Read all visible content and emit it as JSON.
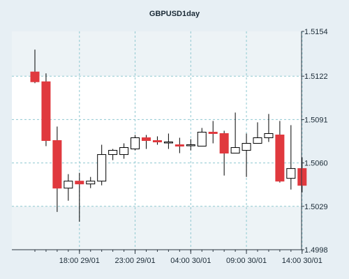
{
  "chart_data": {
    "type": "candlestick",
    "title": "GBPUSD1day",
    "xlabel": "",
    "ylabel": "",
    "ylim": [
      1.4998,
      1.5154
    ],
    "y_ticks": [
      "1.4998",
      "1.5029",
      "1.5060",
      "1.5091",
      "1.5122",
      "1.5154"
    ],
    "x_ticks": [
      {
        "index": 4,
        "label": "18:00 29/01"
      },
      {
        "index": 9,
        "label": "23:00 29/01"
      },
      {
        "index": 14,
        "label": "04:00 30/01"
      },
      {
        "index": 19,
        "label": "09:00 30/01"
      },
      {
        "index": 24,
        "label": "14:00 30/01"
      }
    ],
    "grid": true,
    "colors": {
      "up_fill": "#ffffff",
      "down_fill": "#e0393e",
      "candle_outline": "#000000",
      "grid": "#8fc8d0",
      "plot_background": "#ffffff",
      "band_background": "#edf3f6",
      "page_background": "#e7eff4"
    },
    "candles": [
      {
        "open": 1.5125,
        "high": 1.5141,
        "low": 1.5117,
        "close": 1.5118
      },
      {
        "open": 1.5118,
        "high": 1.5124,
        "low": 1.5072,
        "close": 1.5076
      },
      {
        "open": 1.5076,
        "high": 1.5086,
        "low": 1.5025,
        "close": 1.5042
      },
      {
        "open": 1.5042,
        "high": 1.5052,
        "low": 1.5033,
        "close": 1.5047
      },
      {
        "open": 1.5047,
        "high": 1.5053,
        "low": 1.5018,
        "close": 1.5045
      },
      {
        "open": 1.5045,
        "high": 1.505,
        "low": 1.5042,
        "close": 1.5047
      },
      {
        "open": 1.5047,
        "high": 1.5073,
        "low": 1.5044,
        "close": 1.5066
      },
      {
        "open": 1.5066,
        "high": 1.507,
        "low": 1.5062,
        "close": 1.5069
      },
      {
        "open": 1.5066,
        "high": 1.5074,
        "low": 1.5063,
        "close": 1.5071
      },
      {
        "open": 1.507,
        "high": 1.508,
        "low": 1.5069,
        "close": 1.5078
      },
      {
        "open": 1.5078,
        "high": 1.508,
        "low": 1.507,
        "close": 1.5076
      },
      {
        "open": 1.5076,
        "high": 1.5079,
        "low": 1.5073,
        "close": 1.5075
      },
      {
        "open": 1.5075,
        "high": 1.5081,
        "low": 1.507,
        "close": 1.5075
      },
      {
        "open": 1.5073,
        "high": 1.5078,
        "low": 1.5067,
        "close": 1.5072
      },
      {
        "open": 1.5073,
        "high": 1.5077,
        "low": 1.5069,
        "close": 1.5073
      },
      {
        "open": 1.5072,
        "high": 1.5085,
        "low": 1.5072,
        "close": 1.5082
      },
      {
        "open": 1.5082,
        "high": 1.509,
        "low": 1.5074,
        "close": 1.5081
      },
      {
        "open": 1.5081,
        "high": 1.5083,
        "low": 1.5051,
        "close": 1.5067
      },
      {
        "open": 1.5067,
        "high": 1.5096,
        "low": 1.5067,
        "close": 1.5071
      },
      {
        "open": 1.5069,
        "high": 1.5081,
        "low": 1.505,
        "close": 1.5074
      },
      {
        "open": 1.5074,
        "high": 1.5089,
        "low": 1.5074,
        "close": 1.5078
      },
      {
        "open": 1.5078,
        "high": 1.5095,
        "low": 1.5075,
        "close": 1.5081
      },
      {
        "open": 1.508,
        "high": 1.509,
        "low": 1.5046,
        "close": 1.5047
      },
      {
        "open": 1.5049,
        "high": 1.5087,
        "low": 1.5041,
        "close": 1.5056
      },
      {
        "open": 1.5056,
        "high": 1.5064,
        "low": 1.5039,
        "close": 1.5044
      }
    ]
  }
}
